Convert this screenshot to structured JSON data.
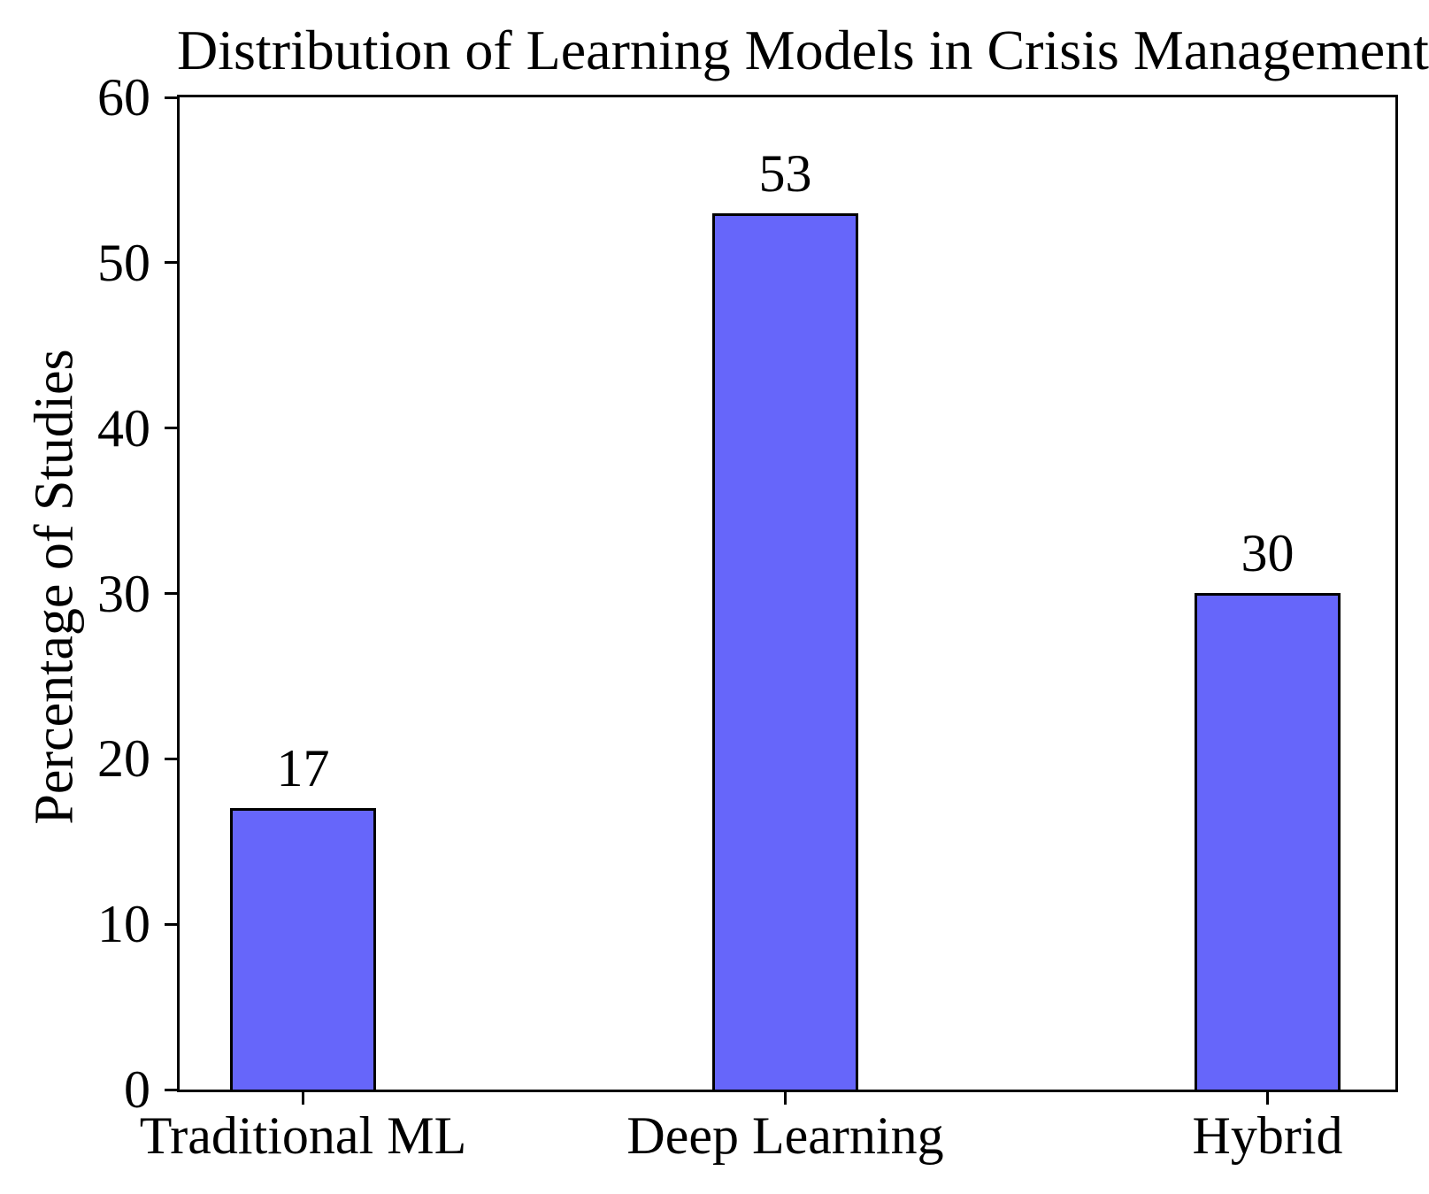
{
  "figure": {
    "background_color": "#ffffff",
    "text_color": "#000000"
  },
  "chart_data": {
    "type": "bar",
    "title": "Distribution of Learning Models in Crisis Management",
    "categories": [
      "Traditional ML",
      "Deep Learning",
      "Hybrid"
    ],
    "values": [
      17,
      53,
      30
    ],
    "xlabel": "",
    "ylabel": "Percentage of Studies",
    "ylim": [
      0,
      60
    ],
    "yticks": [
      0,
      10,
      20,
      30,
      40,
      50,
      60
    ],
    "show_value_labels": true,
    "grid": false,
    "legend": "none",
    "bar_color": "#6666fa",
    "bar_edge_color": "#000000",
    "axis_color": "#000000"
  }
}
